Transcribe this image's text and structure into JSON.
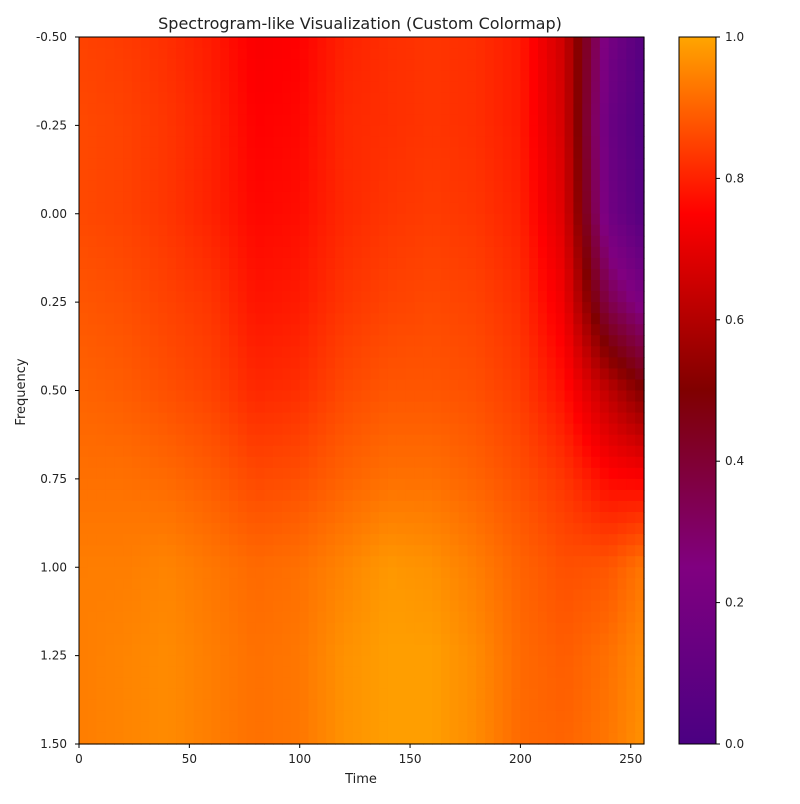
{
  "chart_data": {
    "type": "heatmap",
    "title": "Spectrogram-like Visualization (Custom Colormap)",
    "xlabel": "Time",
    "ylabel": "Frequency",
    "xlim": [
      0,
      256
    ],
    "ylim": [
      -0.5,
      1.5
    ],
    "y_inverted": true,
    "x_ticks": [
      0,
      50,
      100,
      150,
      200,
      250
    ],
    "x_tick_labels": [
      "0",
      "50",
      "100",
      "150",
      "200",
      "250"
    ],
    "y_ticks": [
      -0.5,
      -0.25,
      0.0,
      0.25,
      0.5,
      0.75,
      1.0,
      1.25,
      1.5
    ],
    "y_tick_labels": [
      "-0.50",
      "-0.25",
      "0.00",
      "0.25",
      "0.50",
      "0.75",
      "1.00",
      "1.25",
      "1.50"
    ],
    "colorbar": {
      "range": [
        0,
        1
      ],
      "ticks": [
        0.0,
        0.2,
        0.4,
        0.6,
        0.8,
        1.0
      ],
      "tick_labels": [
        "0.0",
        "0.2",
        "0.4",
        "0.6",
        "0.8",
        "1.0"
      ],
      "colormap": [
        {
          "value": 0.0,
          "color": "#4b0082"
        },
        {
          "value": 0.25,
          "color": "#800080"
        },
        {
          "value": 0.5,
          "color": "#800000"
        },
        {
          "value": 0.75,
          "color": "#ff0000"
        },
        {
          "value": 1.0,
          "color": "#ffa500"
        }
      ]
    },
    "grid": false,
    "x": [
      0,
      20,
      40,
      60,
      80,
      100,
      120,
      140,
      160,
      180,
      200,
      220,
      240,
      256
    ],
    "y": [
      -0.5,
      -0.25,
      0.0,
      0.25,
      0.5,
      0.75,
      1.0,
      1.25,
      1.5
    ],
    "z": [
      [
        0.85,
        0.84,
        0.82,
        0.79,
        0.74,
        0.75,
        0.8,
        0.82,
        0.83,
        0.82,
        0.79,
        0.65,
        0.2,
        0.05
      ],
      [
        0.86,
        0.85,
        0.83,
        0.8,
        0.75,
        0.76,
        0.81,
        0.82,
        0.83,
        0.82,
        0.79,
        0.66,
        0.15,
        0.03
      ],
      [
        0.86,
        0.85,
        0.83,
        0.8,
        0.76,
        0.77,
        0.81,
        0.83,
        0.84,
        0.83,
        0.8,
        0.68,
        0.18,
        0.05
      ],
      [
        0.88,
        0.87,
        0.85,
        0.83,
        0.78,
        0.79,
        0.83,
        0.85,
        0.86,
        0.85,
        0.82,
        0.72,
        0.35,
        0.22
      ],
      [
        0.9,
        0.89,
        0.87,
        0.85,
        0.81,
        0.82,
        0.86,
        0.88,
        0.88,
        0.87,
        0.84,
        0.77,
        0.62,
        0.5
      ],
      [
        0.92,
        0.92,
        0.91,
        0.89,
        0.86,
        0.87,
        0.9,
        0.92,
        0.92,
        0.9,
        0.87,
        0.83,
        0.76,
        0.75
      ],
      [
        0.94,
        0.94,
        0.95,
        0.93,
        0.91,
        0.92,
        0.95,
        0.98,
        0.97,
        0.94,
        0.9,
        0.87,
        0.88,
        0.93
      ],
      [
        0.94,
        0.95,
        0.96,
        0.94,
        0.92,
        0.93,
        0.97,
        0.99,
        0.99,
        0.96,
        0.91,
        0.89,
        0.92,
        0.96
      ],
      [
        0.94,
        0.95,
        0.96,
        0.94,
        0.92,
        0.93,
        0.97,
        0.99,
        0.99,
        0.96,
        0.91,
        0.9,
        0.93,
        0.97
      ]
    ]
  }
}
